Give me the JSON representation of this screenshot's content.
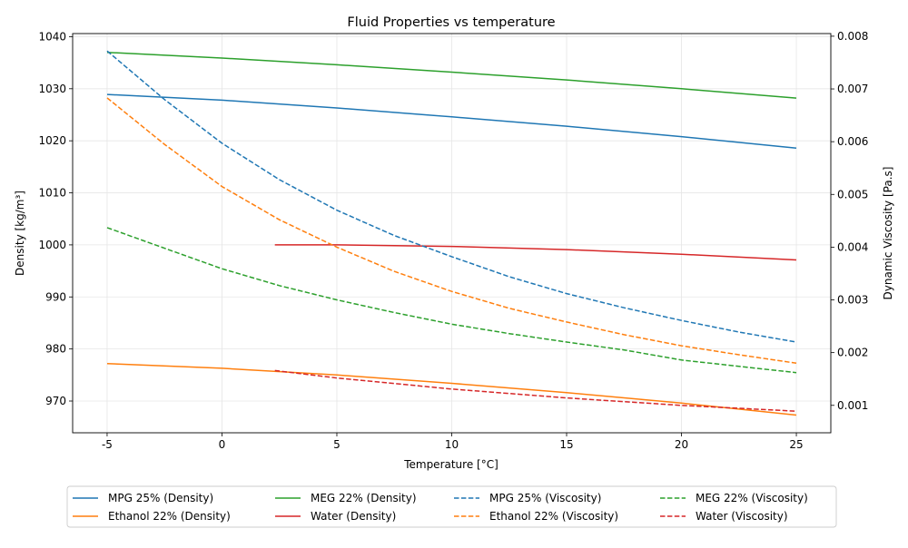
{
  "chart_data": {
    "type": "line",
    "title": "Fluid Properties vs temperature",
    "xlabel": "Temperature [°C]",
    "ylabel_left": "Density [kg/m³]",
    "ylabel_right": "Dynamic Viscosity [Pa.s]",
    "xlim": [
      -6.5,
      26.5
    ],
    "ylim_left": [
      963.9,
      1040.6
    ],
    "ylim_right": [
      0.00048,
      0.00805
    ],
    "x_ticks": [
      -5,
      0,
      5,
      10,
      15,
      20,
      25
    ],
    "y_ticks_left": [
      970,
      980,
      990,
      1000,
      1010,
      1020,
      1030,
      1040
    ],
    "y_ticks_right": [
      0.001,
      0.002,
      0.003,
      0.004,
      0.005,
      0.006,
      0.007,
      0.008
    ],
    "grid": true,
    "legend_position": "bottom",
    "legend_columns": 4,
    "series": [
      {
        "name": "MPG 25% (Density)",
        "axis": "left",
        "style": "solid",
        "color": "#1f77b4",
        "x": [
          -5,
          0,
          5,
          10,
          15,
          20,
          25
        ],
        "values": [
          1028.9,
          1027.8,
          1026.3,
          1024.6,
          1022.8,
          1020.8,
          1018.6
        ]
      },
      {
        "name": "Ethanol 22% (Density)",
        "axis": "left",
        "style": "solid",
        "color": "#ff7f0e",
        "x": [
          -5,
          0,
          5,
          10,
          15,
          20,
          25
        ],
        "values": [
          977.2,
          976.3,
          975.0,
          973.4,
          971.6,
          969.6,
          967.3
        ]
      },
      {
        "name": "MEG 22% (Density)",
        "axis": "left",
        "style": "solid",
        "color": "#2ca02c",
        "x": [
          -5,
          0,
          5,
          10,
          15,
          20,
          25
        ],
        "values": [
          1037.0,
          1035.9,
          1034.6,
          1033.2,
          1031.7,
          1030.0,
          1028.2
        ]
      },
      {
        "name": "Water (Density)",
        "axis": "left",
        "style": "solid",
        "color": "#d62728",
        "x": [
          2.3,
          5,
          10,
          15,
          20,
          25
        ],
        "values": [
          1000.0,
          1000.0,
          999.7,
          999.1,
          998.2,
          997.1
        ]
      },
      {
        "name": "MPG 25% (Viscosity)",
        "axis": "right",
        "style": "dashed",
        "color": "#1f77b4",
        "x": [
          -5,
          -2.5,
          0,
          2.5,
          5,
          7.5,
          10,
          12.5,
          15,
          17.5,
          20,
          22.5,
          25
        ],
        "values": [
          0.00772,
          0.0068,
          0.00597,
          0.00528,
          0.0047,
          0.00422,
          0.00382,
          0.00344,
          0.00312,
          0.00285,
          0.00261,
          0.00239,
          0.0022
        ]
      },
      {
        "name": "Ethanol 22% (Viscosity)",
        "axis": "right",
        "style": "dashed",
        "color": "#ff7f0e",
        "x": [
          -5,
          -2.5,
          0,
          2.5,
          5,
          7.5,
          10,
          12.5,
          15,
          17.5,
          20,
          22.5,
          25
        ],
        "values": [
          0.00683,
          0.00595,
          0.00515,
          0.00452,
          0.004,
          0.00354,
          0.00316,
          0.00284,
          0.00258,
          0.00234,
          0.00213,
          0.00196,
          0.0018
        ]
      },
      {
        "name": "MEG 22% (Viscosity)",
        "axis": "right",
        "style": "dashed",
        "color": "#2ca02c",
        "x": [
          -5,
          -2.5,
          0,
          2.5,
          5,
          7.5,
          10,
          12.5,
          15,
          17.5,
          20,
          22.5,
          25
        ],
        "values": [
          0.00437,
          0.00398,
          0.00359,
          0.00327,
          0.003,
          0.00276,
          0.00254,
          0.00236,
          0.0022,
          0.00205,
          0.00186,
          0.00174,
          0.00162
        ]
      },
      {
        "name": "Water (Viscosity)",
        "axis": "right",
        "style": "dashed",
        "color": "#d62728",
        "x": [
          2.3,
          5,
          10,
          15,
          20,
          25
        ],
        "values": [
          0.00166,
          0.00152,
          0.00131,
          0.00114,
          0.001,
          0.00089
        ]
      }
    ]
  }
}
